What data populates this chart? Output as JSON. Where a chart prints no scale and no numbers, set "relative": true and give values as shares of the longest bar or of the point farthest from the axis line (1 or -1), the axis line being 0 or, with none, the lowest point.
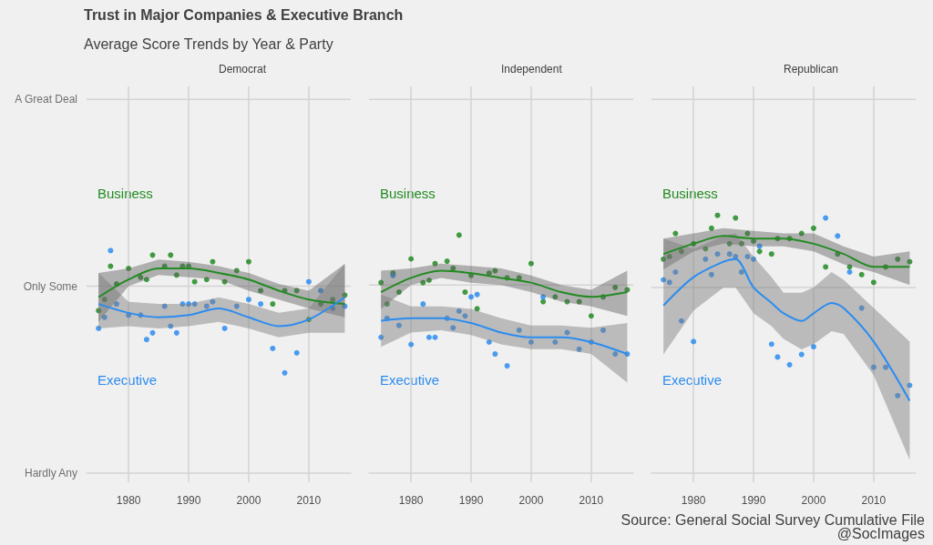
{
  "chart_data": [
    {
      "type": "scatter",
      "title": "Democrat",
      "relative": true,
      "annotations": [
        "Trust in Major Companies & Executive Branch",
        "Average Score Trends by Year & Party",
        "Hardly Any"
      ],
      "x": [
        1975,
        1976,
        1977,
        1978,
        1980,
        1982,
        1983,
        1984,
        1986,
        1987,
        1988,
        1989,
        1990,
        1991,
        1993,
        1994,
        1996,
        1998,
        2000,
        2002,
        2004,
        2006,
        2008,
        2010,
        2012,
        2014,
        2016
      ],
      "xlim": [
        1973,
        2017
      ],
      "xticks": [
        1980,
        1990,
        2000,
        2010
      ],
      "grid": "x",
      "ref_lines": [
        {
          "axis": "y",
          "value": 0.84,
          "label": "Only Some"
        },
        {
          "axis": "y",
          "value": 1.68,
          "label": "A Great Deal"
        }
      ],
      "series": [
        {
          "name": "Business",
          "color": "#228b22",
          "marker": "circle",
          "values": [
            0.73,
            0.78,
            0.93,
            0.85,
            0.92,
            0.88,
            0.87,
            0.98,
            0.93,
            0.98,
            0.89,
            0.93,
            0.93,
            0.86,
            0.87,
            0.95,
            0.86,
            0.91,
            0.95,
            0.82,
            0.76,
            0.82,
            0.82,
            0.69,
            0.76,
            0.78,
            0.8
          ]
        },
        {
          "type": "line",
          "color": "#228b22",
          "x": [
            1975,
            1980,
            1985,
            1990,
            1995,
            2000,
            2005,
            2010,
            2016
          ],
          "values": [
            0.79,
            0.87,
            0.92,
            0.92,
            0.9,
            0.87,
            0.82,
            0.78,
            0.76
          ],
          "lower": [
            0.68,
            0.84,
            0.89,
            0.88,
            0.87,
            0.82,
            0.78,
            0.74,
            0.7
          ],
          "upper": [
            0.9,
            0.92,
            0.96,
            0.95,
            0.93,
            0.9,
            0.85,
            0.82,
            0.94
          ]
        },
        {
          "name": "Executive",
          "color": "#2b8cf0",
          "marker": "circle",
          "values": [
            0.65,
            0.7,
            1.0,
            0.76,
            0.71,
            0.71,
            0.6,
            0.63,
            0.75,
            0.66,
            0.63,
            0.76,
            0.76,
            0.76,
            0.75,
            0.77,
            0.65,
            0.75,
            0.78,
            0.76,
            0.56,
            0.45,
            0.54,
            0.86,
            0.82,
            0.74,
            0.75
          ]
        },
        {
          "type": "line",
          "color": "#2b8cf0",
          "x": [
            1975,
            1980,
            1985,
            1990,
            1995,
            2000,
            2005,
            2010,
            2016
          ],
          "values": [
            0.76,
            0.72,
            0.7,
            0.71,
            0.74,
            0.7,
            0.66,
            0.69,
            0.79
          ],
          "lower": [
            0.65,
            0.66,
            0.65,
            0.66,
            0.68,
            0.65,
            0.61,
            0.63,
            0.63
          ],
          "upper": [
            0.9,
            0.77,
            0.76,
            0.76,
            0.79,
            0.76,
            0.72,
            0.74,
            0.94
          ]
        }
      ]
    },
    {
      "type": "scatter",
      "title": "Independent",
      "relative": true,
      "x": [
        1975,
        1976,
        1977,
        1978,
        1980,
        1982,
        1983,
        1984,
        1986,
        1987,
        1988,
        1989,
        1990,
        1991,
        1993,
        1994,
        1996,
        1998,
        2000,
        2002,
        2004,
        2006,
        2008,
        2010,
        2012,
        2014,
        2016
      ],
      "xlim": [
        1973,
        2017
      ],
      "xticks": [
        1980,
        1990,
        2000,
        2010
      ],
      "grid": "x",
      "ref_lines": [
        {
          "axis": "y",
          "value": 0.79,
          "label": null
        },
        {
          "axis": "y",
          "value": 1.57,
          "label": null
        }
      ],
      "series": [
        {
          "name": "Business",
          "color": "#228b22",
          "marker": "circle",
          "values": [
            0.8,
            0.71,
            0.84,
            0.76,
            0.9,
            0.8,
            0.81,
            0.88,
            0.89,
            0.86,
            1.0,
            0.76,
            0.83,
            0.69,
            0.84,
            0.85,
            0.82,
            0.82,
            0.88,
            0.72,
            0.74,
            0.72,
            0.72,
            0.66,
            0.74,
            0.78,
            0.77
          ]
        },
        {
          "type": "line",
          "color": "#228b22",
          "x": [
            1975,
            1980,
            1985,
            1990,
            1995,
            2000,
            2005,
            2010,
            2016
          ],
          "values": [
            0.76,
            0.82,
            0.85,
            0.84,
            0.82,
            0.8,
            0.76,
            0.74,
            0.76
          ],
          "lower": [
            0.69,
            0.79,
            0.82,
            0.8,
            0.79,
            0.76,
            0.72,
            0.7,
            0.66
          ],
          "upper": [
            0.85,
            0.86,
            0.88,
            0.87,
            0.86,
            0.83,
            0.79,
            0.77,
            0.85
          ]
        },
        {
          "name": "Executive",
          "color": "#2b8cf0",
          "marker": "circle",
          "values": [
            0.57,
            0.65,
            0.83,
            0.62,
            0.54,
            0.71,
            0.57,
            0.57,
            0.65,
            0.61,
            0.68,
            0.66,
            0.74,
            0.75,
            0.55,
            0.5,
            0.45,
            0.6,
            0.55,
            0.74,
            0.55,
            0.59,
            0.52,
            0.55,
            0.6,
            0.5,
            0.5
          ]
        },
        {
          "type": "line",
          "color": "#2b8cf0",
          "x": [
            1975,
            1980,
            1985,
            1990,
            1995,
            2000,
            2005,
            2010,
            2016
          ],
          "values": [
            0.64,
            0.65,
            0.65,
            0.63,
            0.59,
            0.57,
            0.57,
            0.55,
            0.5
          ],
          "lower": [
            0.53,
            0.59,
            0.6,
            0.58,
            0.54,
            0.52,
            0.52,
            0.5,
            0.38
          ],
          "upper": [
            0.75,
            0.7,
            0.7,
            0.69,
            0.65,
            0.62,
            0.62,
            0.61,
            0.63
          ]
        }
      ]
    },
    {
      "type": "scatter",
      "title": "Republican",
      "relative": true,
      "annotations": [
        "Source: General Social Survey Cumulative File",
        "@SocImages"
      ],
      "x": [
        1975,
        1976,
        1977,
        1978,
        1980,
        1982,
        1983,
        1984,
        1986,
        1987,
        1988,
        1989,
        1990,
        1991,
        1993,
        1994,
        1996,
        1998,
        2000,
        2002,
        2004,
        2006,
        2008,
        2010,
        2012,
        2014,
        2016
      ],
      "xlim": [
        1973,
        2017
      ],
      "xticks": [
        1980,
        1990,
        2000,
        2010
      ],
      "grid": "x",
      "ref_lines": [
        {
          "axis": "y",
          "value": 0.72,
          "label": null
        },
        {
          "axis": "y",
          "value": 1.45,
          "label": null
        }
      ],
      "series": [
        {
          "name": "Business",
          "color": "#228b22",
          "marker": "circle",
          "values": [
            0.83,
            0.84,
            0.93,
            0.86,
            0.89,
            0.87,
            0.95,
            1.0,
            0.89,
            0.99,
            0.89,
            0.93,
            0.9,
            0.86,
            0.85,
            0.91,
            0.91,
            0.93,
            0.95,
            0.8,
            0.85,
            0.8,
            0.77,
            0.74,
            0.8,
            0.83,
            0.82
          ]
        },
        {
          "type": "line",
          "color": "#228b22",
          "x": [
            1975,
            1980,
            1985,
            1990,
            1995,
            2000,
            2005,
            2010,
            2016
          ],
          "values": [
            0.85,
            0.89,
            0.92,
            0.91,
            0.91,
            0.89,
            0.85,
            0.8,
            0.8
          ],
          "lower": [
            0.79,
            0.86,
            0.89,
            0.88,
            0.88,
            0.86,
            0.81,
            0.78,
            0.73
          ],
          "upper": [
            0.91,
            0.93,
            0.95,
            0.94,
            0.93,
            0.93,
            0.88,
            0.84,
            0.86
          ]
        },
        {
          "name": "Executive",
          "color": "#2b8cf0",
          "marker": "circle",
          "values": [
            0.75,
            0.74,
            0.78,
            0.59,
            0.51,
            0.83,
            0.77,
            0.85,
            0.85,
            0.84,
            0.78,
            0.84,
            0.83,
            0.88,
            0.5,
            0.45,
            0.42,
            0.46,
            0.49,
            0.99,
            0.92,
            0.78,
            0.64,
            0.41,
            0.41,
            0.3,
            0.34
          ]
        },
        {
          "type": "line",
          "color": "#2b8cf0",
          "x": [
            1975,
            1980,
            1985,
            1987,
            1990,
            1993,
            1995,
            1998,
            2000,
            2003,
            2005,
            2010,
            2016
          ],
          "values": [
            0.65,
            0.76,
            0.82,
            0.83,
            0.72,
            0.66,
            0.62,
            0.59,
            0.62,
            0.66,
            0.64,
            0.51,
            0.28
          ],
          "lower": [
            0.46,
            0.63,
            0.72,
            0.72,
            0.62,
            0.57,
            0.52,
            0.48,
            0.5,
            0.55,
            0.54,
            0.38,
            0.05
          ],
          "upper": [
            0.91,
            0.87,
            0.92,
            0.93,
            0.84,
            0.76,
            0.7,
            0.7,
            0.72,
            0.78,
            0.75,
            0.64,
            0.51
          ]
        }
      ]
    }
  ]
}
